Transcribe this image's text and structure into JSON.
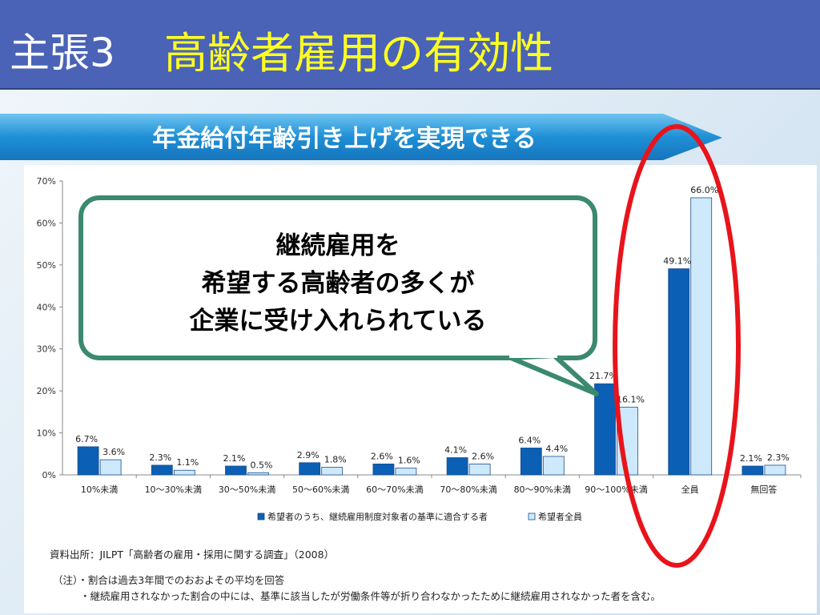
{
  "slide": {
    "title_prefix": "主張3",
    "title_main": "高齢者雇用の有効性",
    "subtitle": "年金給付年齢引き上げを実現できる",
    "bubble_lines": [
      "継続雇用を",
      "希望する高齢者の多くが",
      "企業に受け入れられている"
    ],
    "source": "資料出所：JILPT「高齢者の雇用・採用に関する調査」（2008）",
    "note1": "（注）・割合は過去3年間でのおおよその平均を回答",
    "note2": "・継続雇用されなかった割合の中には、基準に該当したが労働条件等が折り合わなかったために継続雇用されなかった者を含む。"
  },
  "chart_data": {
    "type": "bar",
    "categories": [
      "10%未満",
      "10～30%未満",
      "30～50%未満",
      "50～60%未満",
      "60～70%未満",
      "70～80%未満",
      "80～90%未満",
      "90～100%未満",
      "全員",
      "無回答"
    ],
    "series": [
      {
        "name": "希望者のうち、継続雇用制度対象者の基準に適合する者",
        "values": [
          6.7,
          2.3,
          2.1,
          2.9,
          2.6,
          4.1,
          6.4,
          21.7,
          49.1,
          2.1
        ],
        "color": "#0b5fb4"
      },
      {
        "name": "希望者全員",
        "values": [
          3.6,
          1.1,
          0.5,
          1.8,
          1.6,
          2.6,
          4.4,
          16.1,
          66.0,
          2.3
        ],
        "color": "#cde9fb"
      }
    ],
    "data_labels": [
      [
        "6.7%",
        "2.3%",
        "2.1%",
        "2.9%",
        "2.6%",
        "4.1%",
        "6.4%",
        "21.7%",
        "49.1%",
        "2.1%"
      ],
      [
        "3.6%",
        "1.1%",
        "0.5%",
        "1.8%",
        "1.6%",
        "2.6%",
        "4.4%",
        "16.1%",
        "66.0%",
        "2.3%"
      ]
    ],
    "yticks": [
      "0%",
      "10%",
      "20%",
      "30%",
      "40%",
      "50%",
      "60%",
      "70%"
    ],
    "ylim": [
      0,
      70
    ],
    "grid": false,
    "legend_position": "bottom"
  }
}
